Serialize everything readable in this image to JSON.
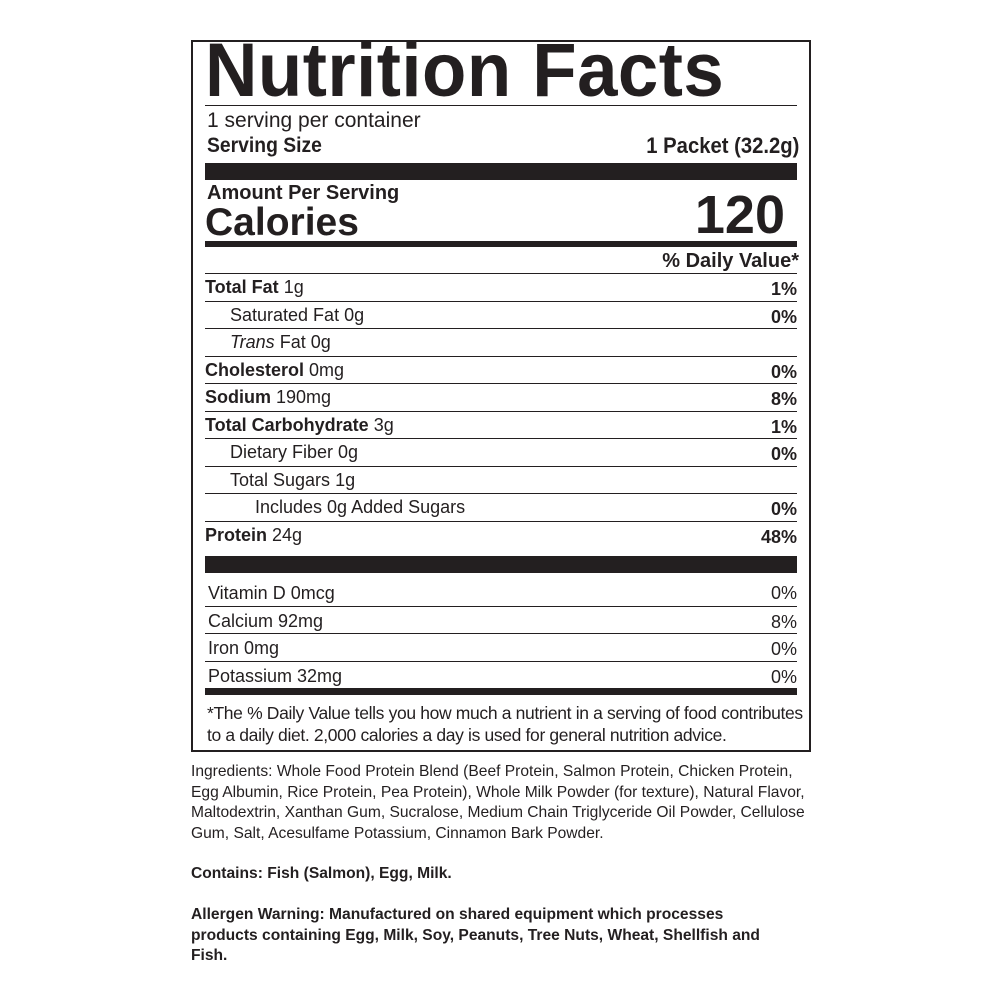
{
  "label": {
    "title": "Nutrition Facts",
    "servings_per_container": "1 serving per container",
    "serving_size_label": "Serving Size",
    "serving_size_value": "1 Packet (32.2g)",
    "amount_per_serving": "Amount Per Serving",
    "calories_label": "Calories",
    "calories_value": "120",
    "daily_value_header": "% Daily Value*",
    "nutrients": [
      {
        "name": "Total Fat",
        "amount": "1g",
        "dv": "1%"
      },
      {
        "name": "Saturated Fat",
        "amount": "0g",
        "dv": "0%"
      },
      {
        "name": "Trans",
        "amount": "Fat 0g",
        "dv": ""
      },
      {
        "name": "Cholesterol",
        "amount": "0mg",
        "dv": "0%"
      },
      {
        "name": "Sodium",
        "amount": "190mg",
        "dv": "8%"
      },
      {
        "name": "Total Carbohydrate",
        "amount": "3g",
        "dv": "1%"
      },
      {
        "name": "Dietary Fiber",
        "amount": "0g",
        "dv": "0%"
      },
      {
        "name": "Total Sugars",
        "amount": "1g",
        "dv": ""
      },
      {
        "name": "Includes 0g Added Sugars",
        "amount": "",
        "dv": "0%"
      },
      {
        "name": "Protein",
        "amount": "24g",
        "dv": "48%"
      }
    ],
    "vitamins": [
      {
        "name": "Vitamin D 0mcg",
        "dv": "0%"
      },
      {
        "name": "Calcium 92mg",
        "dv": "8%"
      },
      {
        "name": "Iron 0mg",
        "dv": "0%"
      },
      {
        "name": "Potassium 32mg",
        "dv": "0%"
      }
    ],
    "footnote": "*The % Daily Value tells you how much a nutrient in a serving of food contributes to a daily diet. 2,000 calories a day is used for general nutrition advice."
  },
  "ingredients": "Ingredients: Whole Food Protein Blend (Beef Protein, Salmon Protein, Chicken Protein, Egg Albumin, Rice Protein, Pea Protein), Whole Milk Powder (for texture), Natural Flavor, Maltodextrin, Xanthan Gum, Sucralose, Medium Chain Triglyceride Oil Powder, Cellulose Gum, Salt, Acesulfame Potassium, Cinnamon Bark Powder.",
  "contains": "Contains: Fish (Salmon), Egg, Milk.",
  "allergen_warning": "Allergen Warning: Manufactured on shared equipment which processes products containing Egg, Milk, Soy, Peanuts, Tree Nuts, Wheat, Shellfish and Fish."
}
